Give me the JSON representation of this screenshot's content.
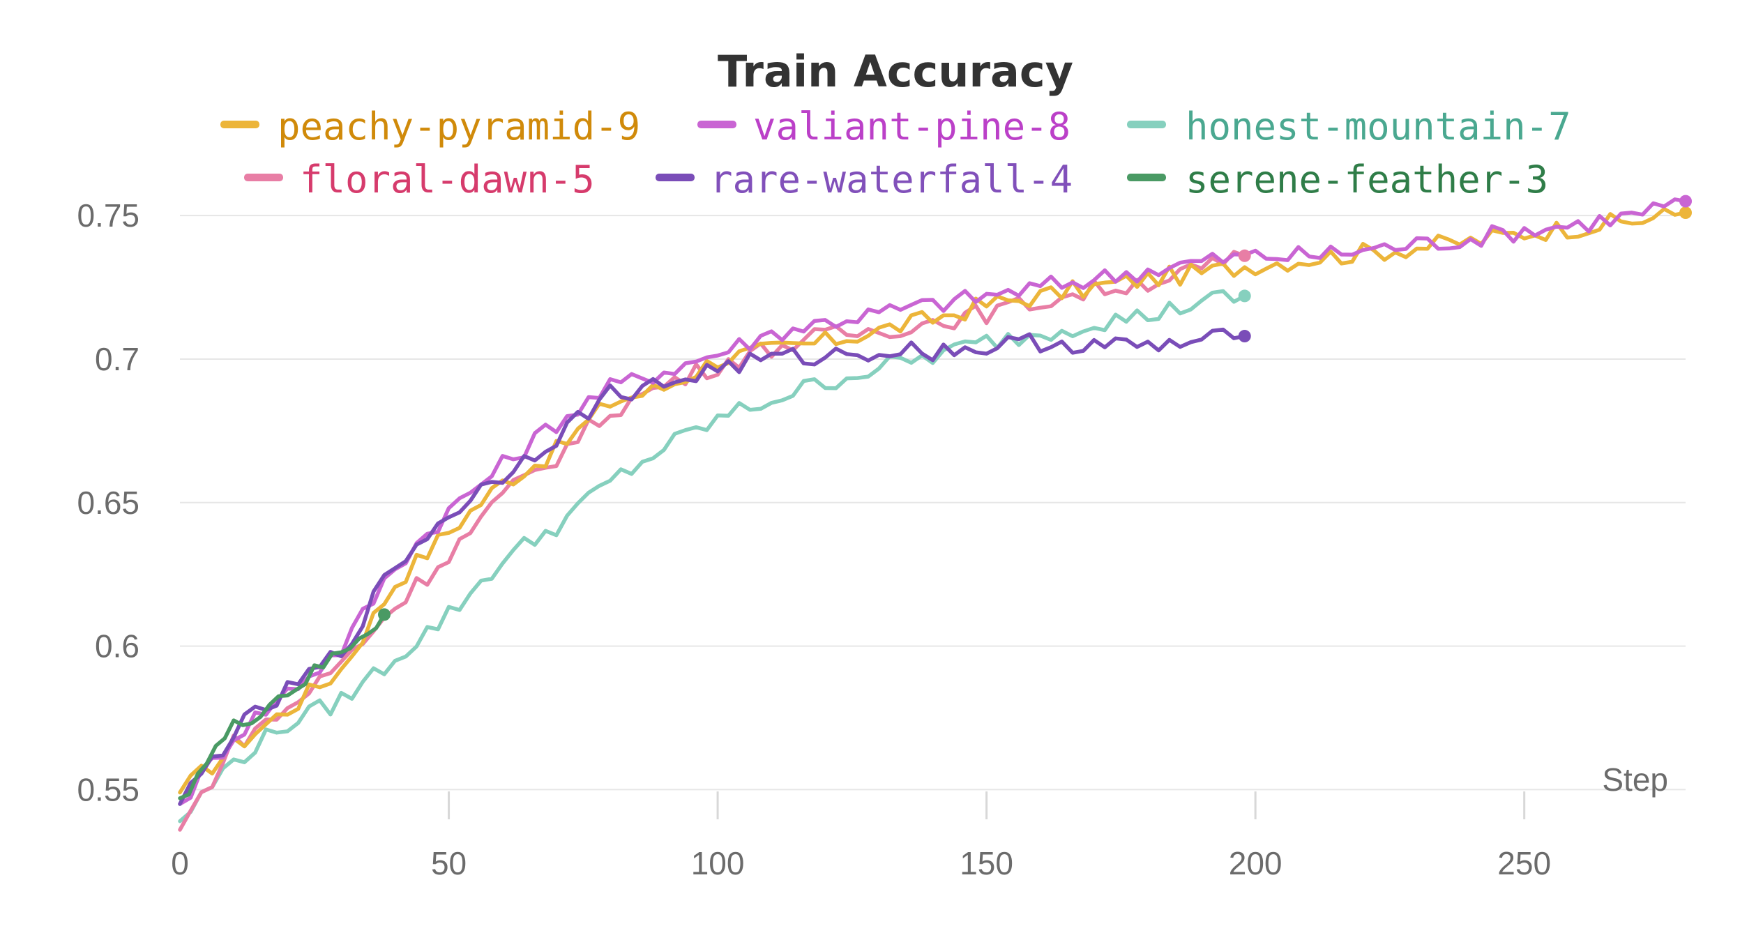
{
  "chart_data": {
    "type": "line",
    "title": "Train Accuracy",
    "xlabel": "Step",
    "ylabel": "",
    "xlim": [
      0,
      280
    ],
    "ylim": [
      0.545,
      0.76
    ],
    "x_ticks": [
      0,
      50,
      100,
      150,
      200,
      250
    ],
    "x_tick_labels": [
      "0",
      "50",
      "100",
      "150",
      "200",
      "250"
    ],
    "y_ticks": [
      0.55,
      0.6,
      0.65,
      0.7,
      0.75
    ],
    "y_tick_labels": [
      "0.55",
      "0.6",
      "0.65",
      "0.7",
      "0.75"
    ],
    "grid": true,
    "legend_position": "top",
    "series": [
      {
        "name": "peachy-pyramid-9",
        "color": "#ecb53a",
        "text_color": "#d08a0a",
        "end_marker": true,
        "x": [
          0,
          10,
          20,
          30,
          40,
          50,
          60,
          70,
          80,
          90,
          100,
          110,
          120,
          130,
          140,
          150,
          160,
          170,
          180,
          190,
          200,
          210,
          220,
          230,
          240,
          250,
          260,
          270,
          280
        ],
        "y": [
          0.549,
          0.565,
          0.578,
          0.592,
          0.622,
          0.64,
          0.657,
          0.668,
          0.685,
          0.69,
          0.7,
          0.703,
          0.706,
          0.71,
          0.714,
          0.719,
          0.722,
          0.725,
          0.728,
          0.73,
          0.733,
          0.735,
          0.737,
          0.739,
          0.741,
          0.744,
          0.746,
          0.748,
          0.751
        ]
      },
      {
        "name": "valiant-pine-8",
        "color": "#c965d3",
        "text_color": "#bb40c8",
        "end_marker": true,
        "x": [
          0,
          10,
          20,
          30,
          40,
          50,
          60,
          70,
          80,
          90,
          100,
          110,
          120,
          130,
          140,
          150,
          160,
          170,
          180,
          190,
          200,
          210,
          220,
          230,
          240,
          250,
          260,
          270,
          280
        ],
        "y": [
          0.545,
          0.569,
          0.584,
          0.599,
          0.628,
          0.647,
          0.663,
          0.678,
          0.69,
          0.696,
          0.702,
          0.709,
          0.713,
          0.716,
          0.719,
          0.722,
          0.725,
          0.728,
          0.731,
          0.734,
          0.736,
          0.736,
          0.738,
          0.74,
          0.742,
          0.745,
          0.747,
          0.75,
          0.755
        ]
      },
      {
        "name": "honest-mountain-7",
        "color": "#86d0be",
        "text_color": "#4aa890",
        "end_marker": true,
        "x": [
          0,
          10,
          20,
          30,
          40,
          50,
          60,
          70,
          80,
          90,
          100,
          110,
          120,
          130,
          140,
          150,
          160,
          170,
          180,
          190,
          198
        ],
        "y": [
          0.539,
          0.56,
          0.573,
          0.581,
          0.596,
          0.611,
          0.63,
          0.642,
          0.657,
          0.669,
          0.679,
          0.686,
          0.692,
          0.697,
          0.701,
          0.706,
          0.709,
          0.713,
          0.715,
          0.72,
          0.722
        ]
      },
      {
        "name": "floral-dawn-5",
        "color": "#e87ea5",
        "text_color": "#d63b6c",
        "end_marker": true,
        "x": [
          0,
          10,
          20,
          30,
          40,
          50,
          60,
          70,
          80,
          90,
          100,
          110,
          120,
          130,
          140,
          150,
          160,
          170,
          180,
          190,
          198
        ],
        "y": [
          0.536,
          0.566,
          0.578,
          0.594,
          0.614,
          0.632,
          0.652,
          0.666,
          0.682,
          0.691,
          0.698,
          0.704,
          0.708,
          0.71,
          0.713,
          0.716,
          0.72,
          0.724,
          0.727,
          0.731,
          0.736
        ]
      },
      {
        "name": "rare-waterfall-4",
        "color": "#7a4db8",
        "text_color": "#8150ba",
        "end_marker": true,
        "x": [
          0,
          10,
          20,
          30,
          40,
          50,
          60,
          70,
          80,
          90,
          100,
          110,
          120,
          130,
          140,
          150,
          160,
          170,
          180,
          190,
          198
        ],
        "y": [
          0.545,
          0.57,
          0.584,
          0.598,
          0.628,
          0.646,
          0.66,
          0.673,
          0.688,
          0.691,
          0.697,
          0.7,
          0.701,
          0.703,
          0.703,
          0.704,
          0.706,
          0.705,
          0.704,
          0.706,
          0.708
        ]
      },
      {
        "name": "serene-feather-3",
        "color": "#4a9a64",
        "text_color": "#2f7d48",
        "end_marker": true,
        "x": [
          0,
          5,
          10,
          15,
          20,
          25,
          30,
          35,
          38
        ],
        "y": [
          0.547,
          0.56,
          0.571,
          0.578,
          0.584,
          0.59,
          0.598,
          0.606,
          0.611
        ]
      }
    ]
  }
}
